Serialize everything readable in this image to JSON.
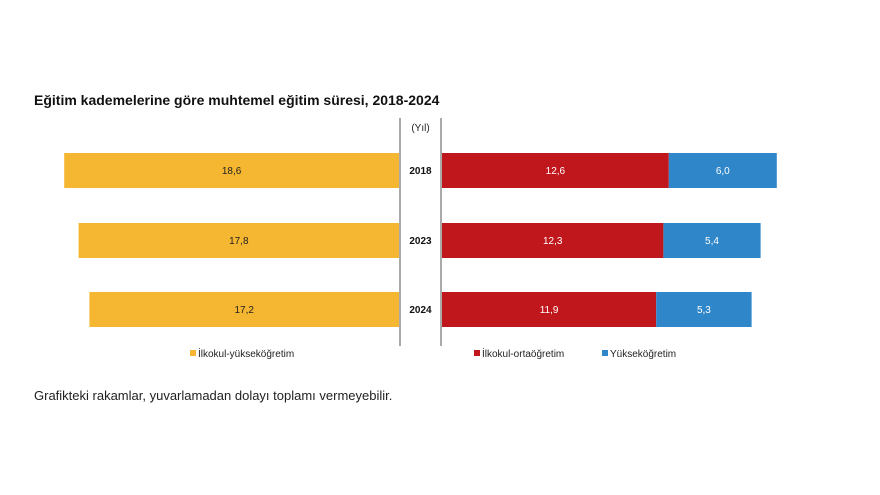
{
  "chart_data": {
    "type": "bar",
    "title": "Eğitim kademelerine göre muhtemel eğitim süresi, 2018-2024",
    "axis_unit_label": "(Yıl)",
    "categories": [
      "2018",
      "2023",
      "2024"
    ],
    "left_panel": {
      "series": [
        {
          "name": "İlkokul-yükseköğretim",
          "values": [
            18.6,
            17.8,
            17.2
          ],
          "labels": [
            "18,6",
            "17,8",
            "17,2"
          ],
          "color": "#F5B731"
        }
      ]
    },
    "right_panel": {
      "stacked": true,
      "series": [
        {
          "name": "İlkokul-ortaöğretim",
          "values": [
            12.6,
            12.3,
            11.9
          ],
          "labels": [
            "12,6",
            "12,3",
            "11,9"
          ],
          "color": "#C0171C"
        },
        {
          "name": "Yükseköğretim",
          "values": [
            6.0,
            5.4,
            5.3
          ],
          "labels": [
            "6,0",
            "5,4",
            "5,3"
          ],
          "color": "#2F86C8"
        }
      ]
    },
    "legend_placement": "bottom",
    "grid": false
  },
  "footnote": "Grafikteki rakamlar, yuvarlamadan dolayı toplamı vermeyebilir."
}
